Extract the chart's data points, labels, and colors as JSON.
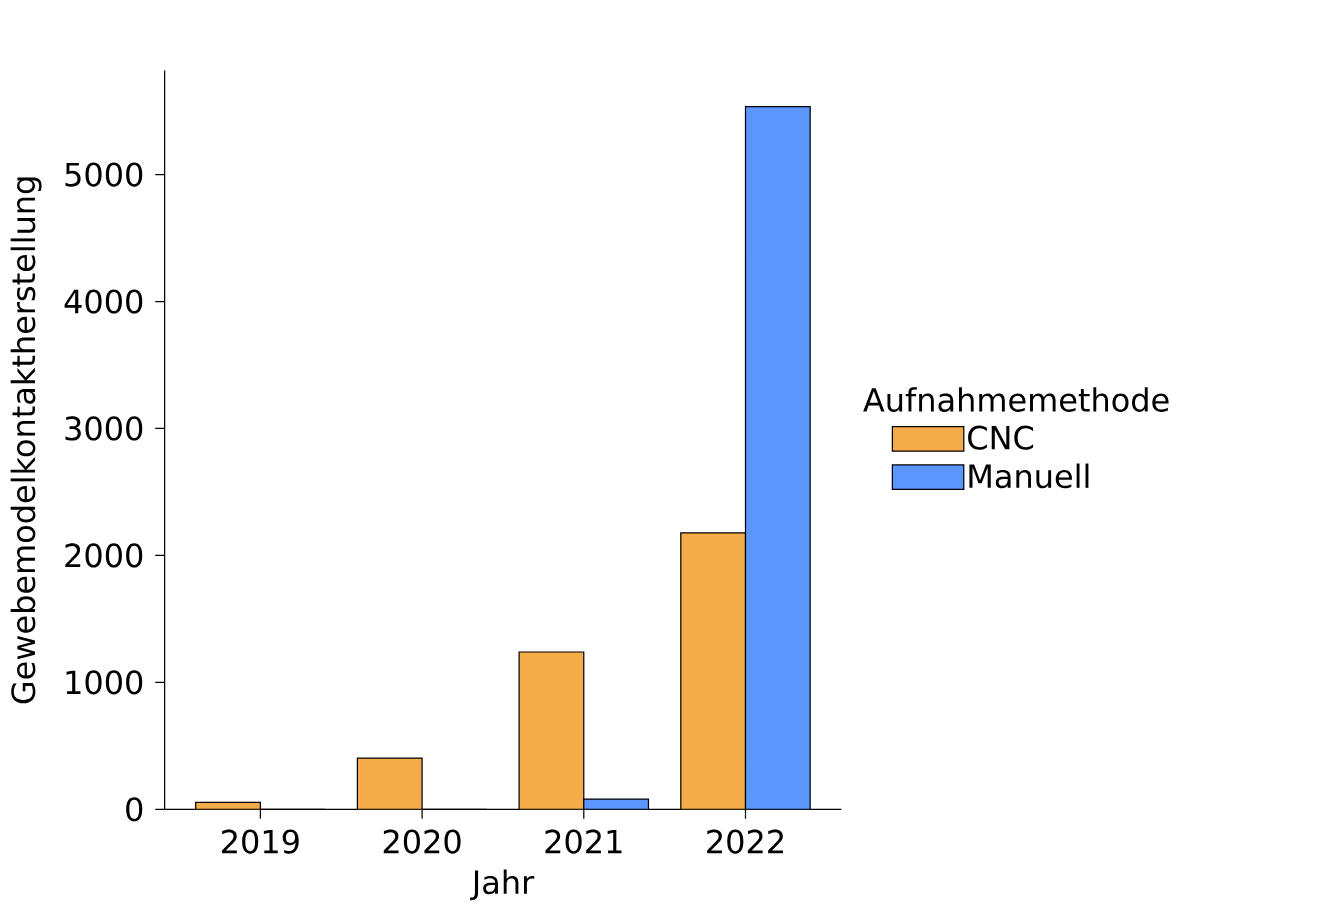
{
  "chart_data": {
    "type": "bar",
    "xlabel": "Jahr",
    "ylabel": "Gewebemodelkontaktherstellung",
    "legend_title": "Aufnahmemethode",
    "legend": "right",
    "categories": [
      "2019",
      "2020",
      "2021",
      "2022"
    ],
    "series": [
      {
        "name": "CNC",
        "color": "#f4ac4a",
        "values": [
          55,
          403,
          1239,
          2177
        ]
      },
      {
        "name": "Manuell",
        "color": "#5a96fc",
        "values": [
          0,
          0,
          80,
          5535
        ]
      }
    ],
    "ylim": [
      0,
      5820
    ],
    "yticks": [
      0,
      1000,
      2000,
      3000,
      4000,
      5000
    ]
  }
}
